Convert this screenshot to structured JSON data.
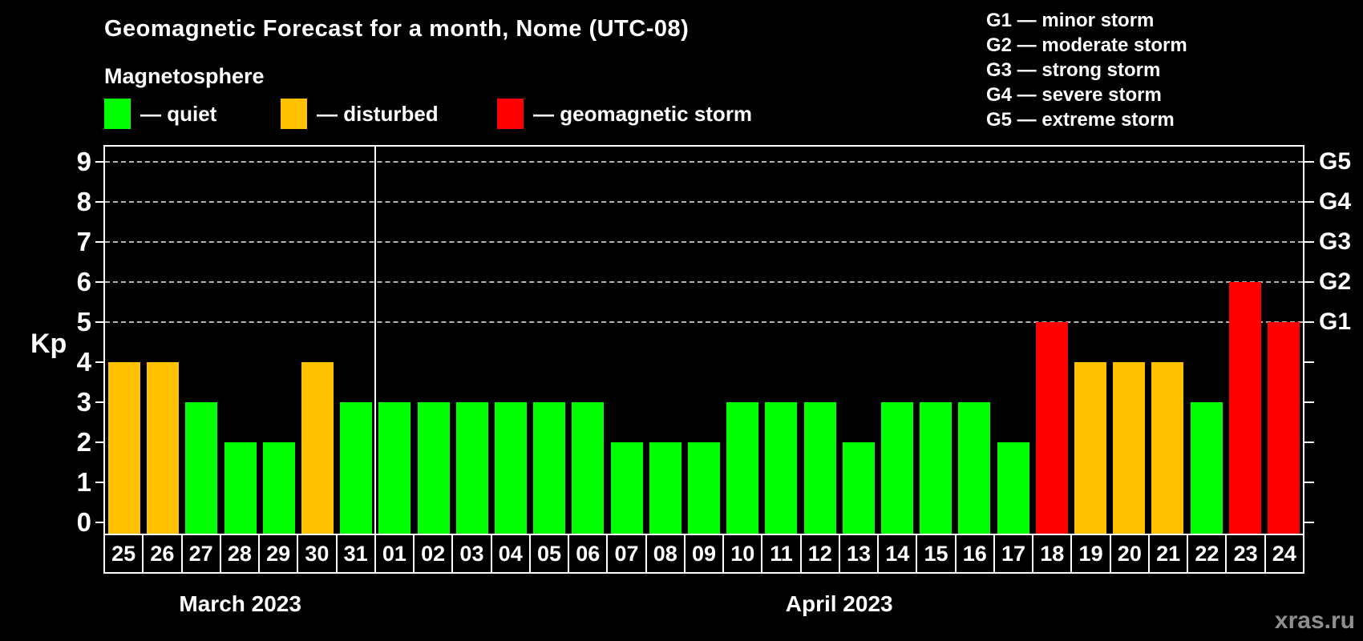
{
  "header": {
    "title": "Geomagnetic Forecast for a month, Nome (UTC-08)",
    "subtitle": "Magnetosphere"
  },
  "legend": {
    "items": [
      {
        "key": "quiet",
        "label": "— quiet",
        "color": "#00ff00"
      },
      {
        "key": "disturbed",
        "label": "— disturbed",
        "color": "#ffc100"
      },
      {
        "key": "storm",
        "label": "— geomagnetic storm",
        "color": "#ff0000"
      }
    ]
  },
  "g_legend": {
    "lines": [
      "G1 — minor storm",
      "G2 — moderate storm",
      "G3 — strong storm",
      "G4 — severe storm",
      "G5 — extreme storm"
    ]
  },
  "chart_data": {
    "type": "bar",
    "title": "Geomagnetic Forecast for a month, Nome (UTC-08)",
    "ylabel": "Kp",
    "ylim": [
      0,
      9
    ],
    "yticks": [
      0,
      1,
      2,
      3,
      4,
      5,
      6,
      7,
      8,
      9
    ],
    "gridlines_at": [
      5,
      6,
      7,
      8,
      9
    ],
    "grid": "dashed horizontal at Kp 5-9 only",
    "right_axis_labels": [
      {
        "kp": 5,
        "label": "G1"
      },
      {
        "kp": 6,
        "label": "G2"
      },
      {
        "kp": 7,
        "label": "G3"
      },
      {
        "kp": 8,
        "label": "G4"
      },
      {
        "kp": 9,
        "label": "G5"
      }
    ],
    "categories": [
      "25",
      "26",
      "27",
      "28",
      "29",
      "30",
      "31",
      "01",
      "02",
      "03",
      "04",
      "05",
      "06",
      "07",
      "08",
      "09",
      "10",
      "11",
      "12",
      "13",
      "14",
      "15",
      "16",
      "17",
      "18",
      "19",
      "20",
      "21",
      "22",
      "23",
      "24"
    ],
    "values": [
      4,
      4,
      3,
      2,
      2,
      4,
      3,
      3,
      3,
      3,
      3,
      3,
      3,
      2,
      2,
      2,
      3,
      3,
      3,
      2,
      3,
      3,
      3,
      2,
      5,
      4,
      4,
      4,
      3,
      6,
      5
    ],
    "months": [
      {
        "label": "March 2023",
        "days": 7
      },
      {
        "label": "April 2023",
        "days": 24
      }
    ],
    "color_rules": {
      "quiet_max": 3,
      "disturbed_max": 4
    }
  },
  "colors": {
    "quiet": "#00ff00",
    "disturbed": "#ffc100",
    "storm": "#ff0000",
    "axis": "#ffffff",
    "grid": "#b5b5b5"
  },
  "watermark": "xras.ru"
}
